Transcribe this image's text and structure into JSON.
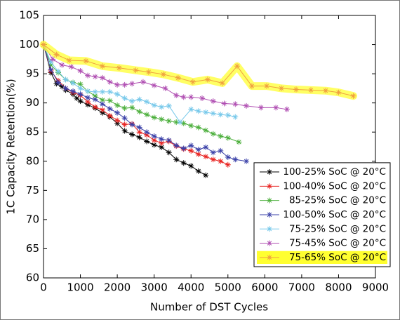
{
  "chart_data": {
    "type": "line",
    "xlabel": "Number of DST Cycles",
    "ylabel": "1C Capacity Retention(%)",
    "xlim": [
      0,
      9000
    ],
    "xticks": [
      0,
      1000,
      2000,
      3000,
      4000,
      5000,
      6000,
      7000,
      8000,
      9000
    ],
    "ylim": [
      60,
      105
    ],
    "yticks": [
      60,
      65,
      70,
      75,
      80,
      85,
      90,
      95,
      100,
      105
    ],
    "grid": false,
    "legend": "lower right",
    "marker": "star",
    "series": [
      {
        "name": "100-25% SoC @ 20°C",
        "color": "#000000",
        "x": [
          0,
          200,
          350,
          500,
          600,
          800,
          900,
          1000,
          1200,
          1400,
          1600,
          1800,
          2000,
          2200,
          2400,
          2600,
          2800,
          3000,
          3200,
          3400,
          3600,
          3800,
          4000,
          4200,
          4400
        ],
        "values": [
          100,
          95.2,
          93.3,
          92.8,
          92.2,
          91.5,
          90.8,
          90.3,
          89.7,
          89.1,
          88.3,
          87.6,
          86.5,
          85.2,
          84.6,
          84.1,
          83.4,
          82.8,
          82.4,
          81.5,
          80.3,
          79.7,
          79.2,
          78.3,
          77.6
        ]
      },
      {
        "name": "100-40% SoC @ 20°C",
        "color": "#e8211f",
        "x": [
          0,
          200,
          400,
          600,
          800,
          1000,
          1200,
          1400,
          1600,
          1800,
          2000,
          2200,
          2400,
          2600,
          2800,
          3000,
          3200,
          3400,
          3600,
          3800,
          4000,
          4200,
          4400,
          4600,
          4800,
          5000
        ],
        "values": [
          100,
          95.5,
          93.8,
          92.5,
          91.8,
          91.3,
          90.2,
          89.3,
          88.8,
          87.8,
          87.0,
          86.3,
          86.4,
          85.0,
          84.5,
          83.6,
          83.1,
          83.4,
          82.6,
          82.1,
          81.8,
          81.2,
          80.8,
          80.3,
          80.0,
          79.4
        ]
      },
      {
        "name": "85-25% SoC @ 20°C",
        "color": "#4caf3c",
        "x": [
          0,
          200,
          400,
          600,
          800,
          1000,
          1200,
          1400,
          1600,
          1800,
          2000,
          2200,
          2400,
          2600,
          2800,
          3000,
          3200,
          3400,
          3600,
          3800,
          4000,
          4200,
          4400,
          4600,
          4800,
          5000,
          5300
        ],
        "values": [
          100,
          96.5,
          95.2,
          94.0,
          93.5,
          93.2,
          92.0,
          91.2,
          90.5,
          90.4,
          89.6,
          89.1,
          89.2,
          88.5,
          88.0,
          87.5,
          87.2,
          86.9,
          86.7,
          86.5,
          86.1,
          85.8,
          85.3,
          84.7,
          84.3,
          84.0,
          83.3
        ]
      },
      {
        "name": "100-50% SoC @ 20°C",
        "color": "#3a40a8",
        "x": [
          0,
          200,
          400,
          600,
          800,
          1000,
          1200,
          1400,
          1600,
          1800,
          2000,
          2200,
          2400,
          2600,
          2800,
          3000,
          3200,
          3400,
          3600,
          3800,
          4000,
          4200,
          4400,
          4600,
          4800,
          5000,
          5200,
          5500
        ],
        "values": [
          100,
          95.7,
          93.5,
          92.5,
          92.0,
          91.5,
          90.9,
          90.6,
          89.8,
          89.0,
          88.3,
          87.4,
          86.3,
          85.8,
          85.0,
          84.3,
          83.8,
          83.6,
          82.7,
          82.2,
          82.7,
          82.0,
          82.4,
          81.5,
          81.8,
          80.7,
          80.3,
          80.0
        ]
      },
      {
        "name": "75-25% SoC @ 20°C",
        "color": "#76c8ea",
        "x": [
          0,
          200,
          400,
          600,
          800,
          1000,
          1200,
          1400,
          1600,
          1800,
          2000,
          2200,
          2400,
          2600,
          2800,
          3000,
          3200,
          3400,
          3700,
          4000,
          4200,
          4400,
          4600,
          4800,
          5000,
          5200
        ],
        "values": [
          100,
          97.0,
          95.4,
          94.0,
          93.4,
          92.5,
          92.0,
          91.9,
          91.9,
          91.9,
          91.5,
          90.8,
          90.3,
          90.6,
          90.2,
          89.6,
          89.3,
          89.5,
          86.7,
          88.9,
          88.6,
          88.4,
          88.2,
          88.0,
          87.9,
          87.6
        ]
      },
      {
        "name": "75-45% SoC @ 20°C",
        "color": "#b04fb2",
        "x": [
          0,
          250,
          500,
          750,
          1000,
          1200,
          1400,
          1600,
          1800,
          2000,
          2200,
          2400,
          2700,
          3000,
          3300,
          3600,
          3800,
          4000,
          4300,
          4600,
          4900,
          5200,
          5500,
          5900,
          6300,
          6600
        ],
        "values": [
          100,
          97.5,
          96.5,
          96.2,
          95.5,
          94.7,
          94.5,
          94.3,
          93.6,
          93.1,
          93.1,
          93.3,
          93.6,
          93.0,
          92.5,
          91.3,
          91.0,
          91.0,
          90.8,
          90.3,
          89.9,
          89.8,
          89.5,
          89.2,
          89.2,
          88.9
        ]
      },
      {
        "name": "75-65% SoC @ 20°C",
        "color": "#f0a040",
        "highlight": "#ffff30",
        "x": [
          0,
          350,
          700,
          1150,
          1600,
          2050,
          2500,
          2850,
          3250,
          3650,
          4050,
          4450,
          4850,
          5250,
          5650,
          6050,
          6450,
          6850,
          7250,
          7650,
          8000,
          8400
        ],
        "values": [
          100,
          98.3,
          97.3,
          97.2,
          96.3,
          96.0,
          95.6,
          95.3,
          94.9,
          94.3,
          93.6,
          94.0,
          93.4,
          96.3,
          92.9,
          92.9,
          92.5,
          92.3,
          92.2,
          92.1,
          91.8,
          91.2
        ]
      }
    ]
  }
}
